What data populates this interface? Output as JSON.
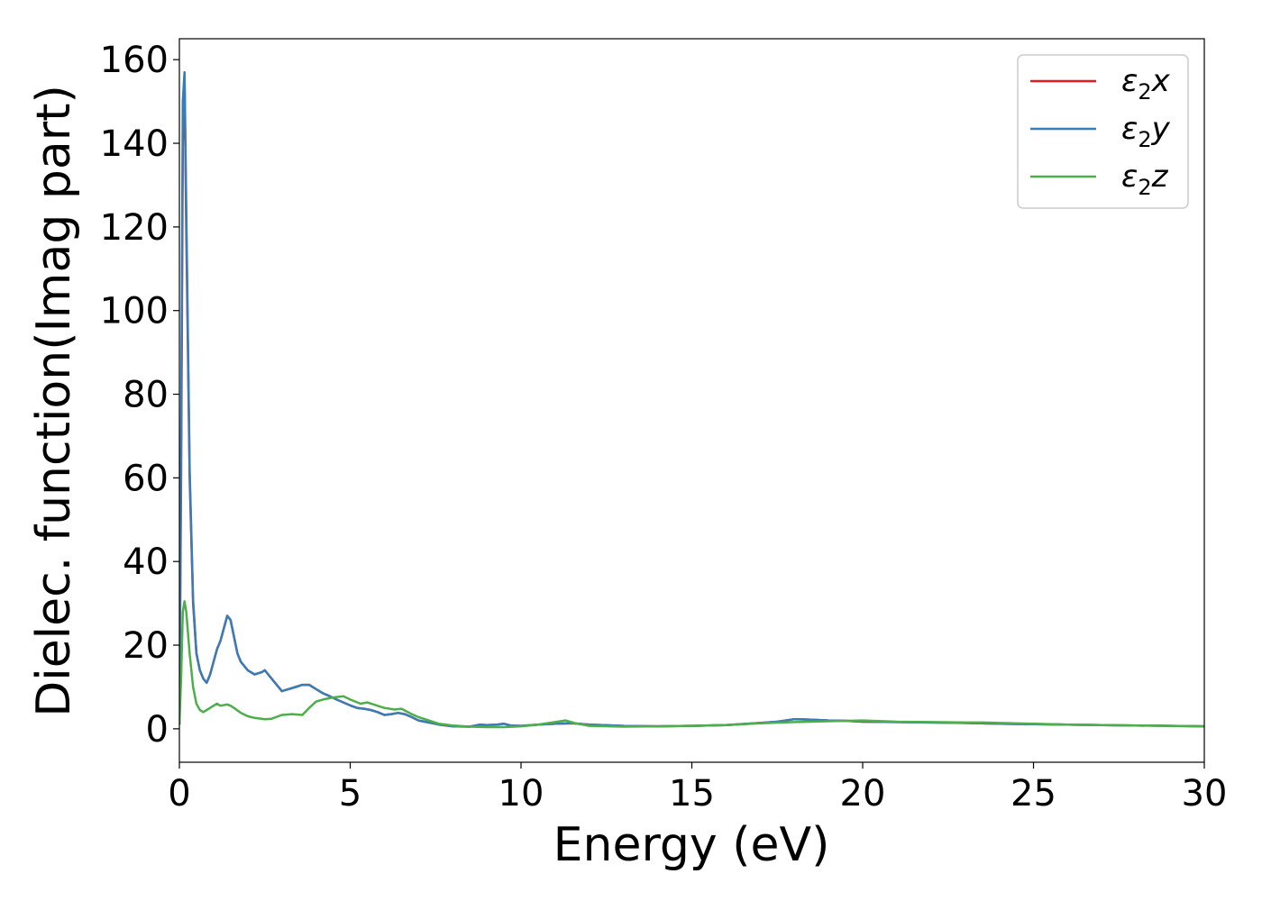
{
  "chart_data": {
    "type": "line",
    "title": "",
    "xlabel": "Energy (eV)",
    "ylabel": "Dielec. function(Imag part)",
    "xlim": [
      0,
      30
    ],
    "ylim": [
      -8,
      165
    ],
    "xticks": [
      0,
      5,
      10,
      15,
      20,
      25,
      30
    ],
    "yticks": [
      0,
      20,
      40,
      60,
      80,
      100,
      120,
      140,
      160
    ],
    "grid": false,
    "legend_position": "top-right",
    "series": [
      {
        "name": "ε₂x",
        "legend_main": "ε",
        "legend_sub": "2",
        "legend_suffix": "x",
        "color": "#e41a1c",
        "x": [
          0,
          0.05,
          0.1,
          0.15,
          0.2,
          0.3,
          0.4,
          0.5,
          0.6,
          0.7,
          0.8,
          0.9,
          1.0,
          1.1,
          1.2,
          1.3,
          1.4,
          1.5,
          1.6,
          1.7,
          1.8,
          1.9,
          2.0,
          2.2,
          2.4,
          2.5,
          2.6,
          2.8,
          3.0,
          3.2,
          3.4,
          3.6,
          3.8,
          4.0,
          4.2,
          4.4,
          4.6,
          4.8,
          5.0,
          5.2,
          5.4,
          5.6,
          5.8,
          6.0,
          6.2,
          6.4,
          6.6,
          6.8,
          7.0,
          7.3,
          7.6,
          8.0,
          8.5,
          8.8,
          9.0,
          9.3,
          9.5,
          9.7,
          10.0,
          10.5,
          11.0,
          11.5,
          12.0,
          13.0,
          14.0,
          15.0,
          16.0,
          17.0,
          17.5,
          18.0,
          18.5,
          19.0,
          19.5,
          20.0,
          21.0,
          22.0,
          23.0,
          24.0,
          25.0,
          26.0,
          27.0,
          28.0,
          29.0,
          30.0
        ],
        "y": [
          1,
          60,
          140,
          156,
          120,
          60,
          30,
          18,
          14,
          12,
          11,
          13,
          16,
          19,
          21,
          24,
          27,
          26,
          22,
          18,
          16,
          15,
          14,
          13,
          13.5,
          14,
          13,
          11,
          9,
          9.5,
          10,
          10.5,
          10.5,
          9.5,
          8.5,
          7.8,
          7,
          6.3,
          5.6,
          5,
          4.8,
          4.5,
          4,
          3.3,
          3.5,
          3.8,
          3.5,
          2.8,
          2,
          1.5,
          1,
          0.6,
          0.5,
          1,
          0.9,
          1,
          1.2,
          0.8,
          0.7,
          1,
          1.2,
          1.3,
          1,
          0.7,
          0.6,
          0.7,
          0.9,
          1.4,
          1.7,
          2.3,
          2.2,
          2,
          1.9,
          1.7,
          1.6,
          1.5,
          1.4,
          1.2,
          1.1,
          1.0,
          0.9,
          0.8,
          0.7,
          0.6
        ]
      },
      {
        "name": "ε₂y",
        "legend_main": "ε",
        "legend_sub": "2",
        "legend_suffix": "y",
        "color": "#377eb8",
        "x": [
          0,
          0.05,
          0.1,
          0.15,
          0.2,
          0.3,
          0.4,
          0.5,
          0.6,
          0.7,
          0.8,
          0.9,
          1.0,
          1.1,
          1.2,
          1.3,
          1.4,
          1.5,
          1.6,
          1.7,
          1.8,
          1.9,
          2.0,
          2.2,
          2.4,
          2.5,
          2.6,
          2.8,
          3.0,
          3.2,
          3.4,
          3.6,
          3.8,
          4.0,
          4.2,
          4.4,
          4.6,
          4.8,
          5.0,
          5.2,
          5.4,
          5.6,
          5.8,
          6.0,
          6.2,
          6.4,
          6.6,
          6.8,
          7.0,
          7.3,
          7.6,
          8.0,
          8.5,
          8.8,
          9.0,
          9.3,
          9.5,
          9.7,
          10.0,
          10.5,
          11.0,
          11.5,
          12.0,
          13.0,
          14.0,
          15.0,
          16.0,
          17.0,
          17.5,
          18.0,
          18.5,
          19.0,
          19.5,
          20.0,
          21.0,
          22.0,
          23.0,
          24.0,
          25.0,
          26.0,
          27.0,
          28.0,
          29.0,
          30.0
        ],
        "y": [
          1,
          70,
          150,
          157,
          125,
          62,
          31,
          18,
          14,
          12,
          11,
          13,
          16,
          19,
          21,
          24,
          27,
          26,
          22,
          18,
          16,
          15,
          14,
          13,
          13.5,
          14,
          13,
          11,
          9,
          9.5,
          10,
          10.5,
          10.5,
          9.5,
          8.5,
          7.8,
          7,
          6.3,
          5.6,
          5,
          4.8,
          4.5,
          4,
          3.3,
          3.5,
          3.8,
          3.5,
          2.8,
          2,
          1.5,
          1,
          0.6,
          0.5,
          1,
          0.9,
          1,
          1.2,
          0.8,
          0.7,
          1,
          1.2,
          1.3,
          1,
          0.7,
          0.6,
          0.7,
          0.9,
          1.4,
          1.7,
          2.3,
          2.2,
          2,
          1.9,
          1.7,
          1.6,
          1.5,
          1.4,
          1.2,
          1.1,
          1.0,
          0.9,
          0.8,
          0.7,
          0.6
        ]
      },
      {
        "name": "ε₂z",
        "legend_main": "ε",
        "legend_sub": "2",
        "legend_suffix": "z",
        "color": "#4daf4a",
        "x": [
          0,
          0.05,
          0.1,
          0.15,
          0.2,
          0.3,
          0.4,
          0.5,
          0.6,
          0.7,
          0.8,
          0.9,
          1.0,
          1.1,
          1.2,
          1.4,
          1.5,
          1.6,
          1.8,
          2.0,
          2.2,
          2.5,
          2.7,
          3.0,
          3.3,
          3.6,
          3.8,
          4.0,
          4.2,
          4.5,
          4.8,
          5.0,
          5.3,
          5.5,
          5.8,
          6.0,
          6.3,
          6.5,
          6.8,
          7.0,
          7.3,
          7.6,
          8.0,
          8.5,
          9.0,
          9.5,
          10.0,
          10.5,
          11.0,
          11.3,
          11.6,
          12.0,
          13.0,
          14.0,
          15.0,
          16.0,
          17.0,
          18.0,
          19.0,
          20.0,
          21.0,
          22.0,
          23.0,
          23.5,
          24.0,
          25.0,
          26.0,
          27.0,
          28.0,
          29.0,
          30.0
        ],
        "y": [
          1,
          12,
          28,
          30.5,
          28,
          18,
          10,
          6,
          4.5,
          4,
          4.5,
          5,
          5.5,
          6,
          5.5,
          5.8,
          5.5,
          5,
          3.8,
          3,
          2.6,
          2.3,
          2.4,
          3.3,
          3.5,
          3.3,
          5,
          6.5,
          7,
          7.5,
          7.8,
          7,
          6,
          6.3,
          5.5,
          5,
          4.6,
          4.8,
          3.5,
          2.8,
          2,
          1.2,
          0.8,
          0.5,
          0.4,
          0.4,
          0.6,
          1,
          1.6,
          2,
          1.3,
          0.7,
          0.5,
          0.6,
          0.7,
          0.9,
          1.3,
          1.6,
          1.8,
          2.0,
          1.7,
          1.6,
          1.5,
          1.5,
          1.4,
          1.2,
          1.0,
          0.9,
          0.8,
          0.7,
          0.6
        ]
      }
    ]
  }
}
